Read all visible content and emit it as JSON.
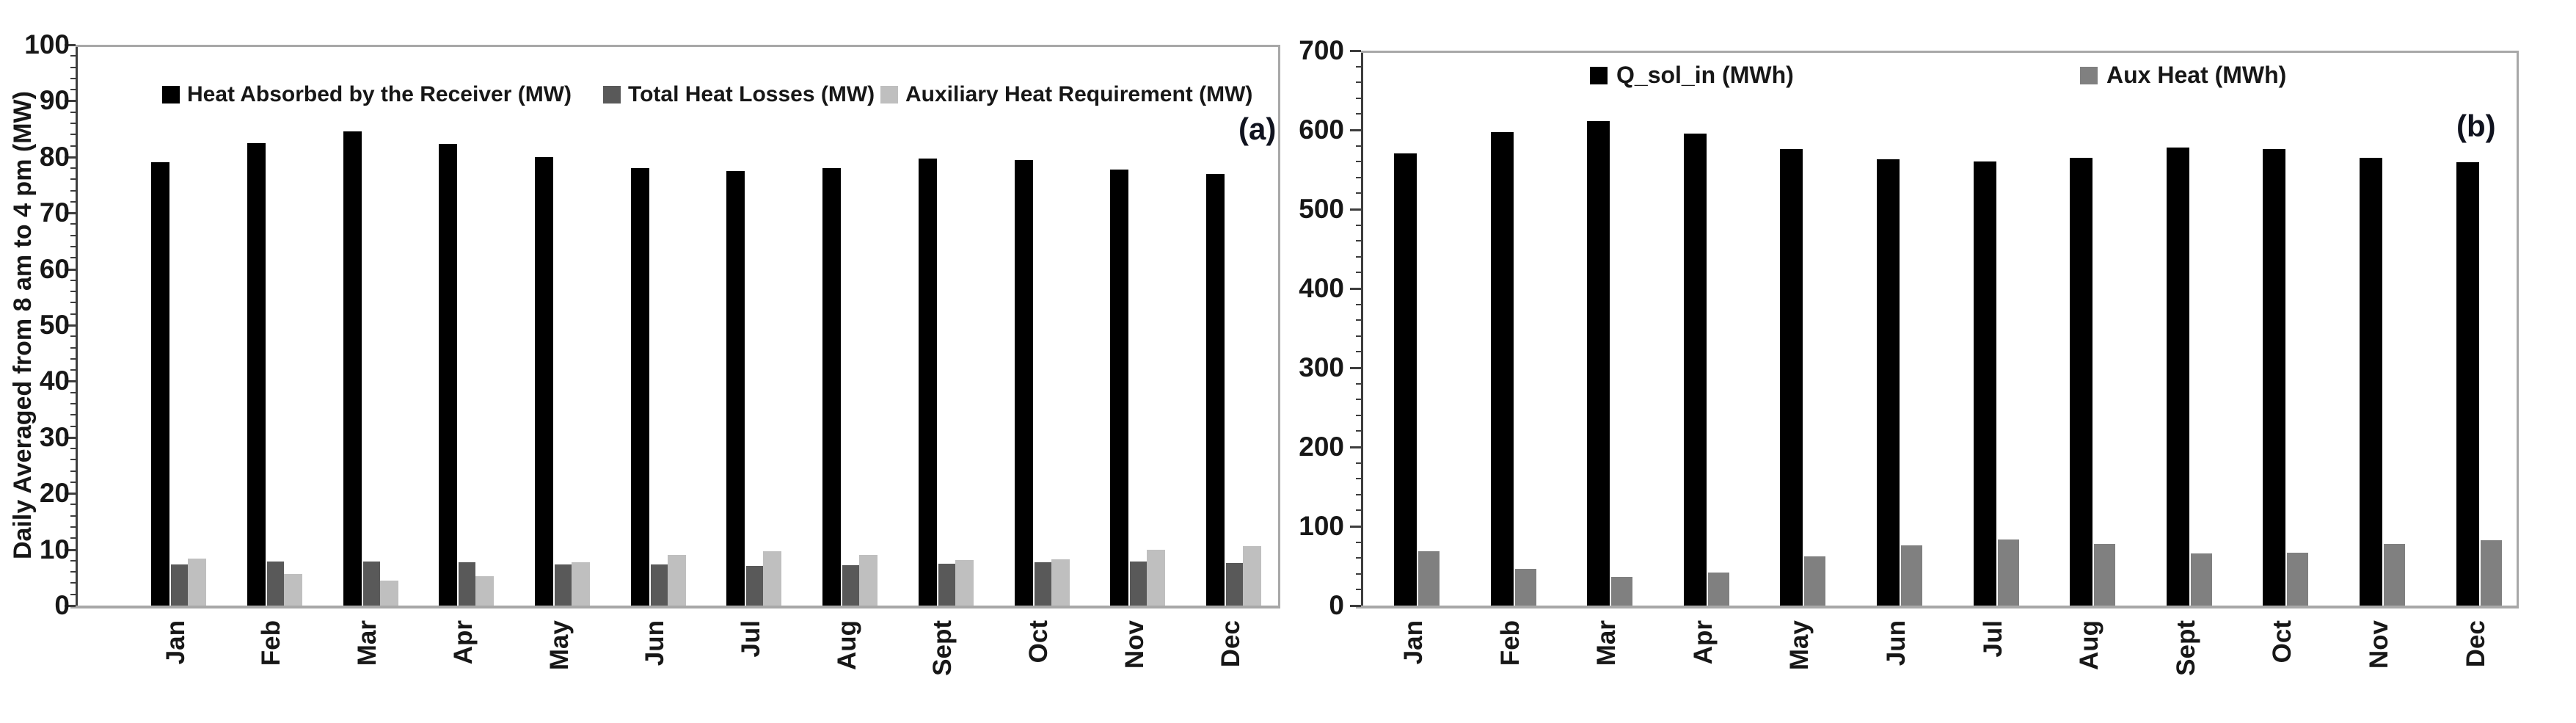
{
  "figure": {
    "background": "#ffffff",
    "axis_line_color": "#a8a8a8",
    "spine_color": "#3d3d3d",
    "text_color": "#171717"
  },
  "chart_data": [
    {
      "type": "bar",
      "panel_label": "(a)",
      "title": "",
      "xlabel": "",
      "ylabel": "Daily Averaged from 8 am to 4 pm (MW)",
      "ylim": [
        0,
        100
      ],
      "ytick_step": 10,
      "minor_tick_step": 2,
      "yticks": [
        "0",
        "10",
        "20",
        "30",
        "40",
        "50",
        "60",
        "70",
        "80",
        "90",
        "100"
      ],
      "grid": "off",
      "legend_position": "top-inside",
      "categories": [
        "Jan",
        "Feb",
        "Mar",
        "Apr",
        "May",
        "Jun",
        "Jul",
        "Aug",
        "Sept",
        "Oct",
        "Nov",
        "Dec"
      ],
      "series": [
        {
          "name": "Heat Absorbed by the Receiver (MW)",
          "color": "#000000",
          "values": [
            79,
            82.5,
            84.5,
            82.3,
            80,
            78,
            77.5,
            78,
            79.7,
            79.4,
            77.7,
            77
          ]
        },
        {
          "name": "Total Heat Losses (MW)",
          "color": "#595959",
          "values": [
            7.4,
            7.8,
            7.9,
            7.7,
            7.4,
            7.4,
            7.1,
            7.2,
            7.5,
            7.7,
            7.8,
            7.6
          ]
        },
        {
          "name": "Auxiliary Heat Requirement (MW)",
          "color": "#bfbfbf",
          "values": [
            8.4,
            5.6,
            4.4,
            5.3,
            7.7,
            9.1,
            9.7,
            9.1,
            8.1,
            8.3,
            10.0,
            10.6
          ]
        }
      ]
    },
    {
      "type": "bar",
      "panel_label": "(b)",
      "title": "",
      "xlabel": "",
      "ylabel": "",
      "ylim": [
        0,
        700
      ],
      "ytick_step": 100,
      "minor_tick_step": 20,
      "yticks": [
        "0",
        "100",
        "200",
        "300",
        "400",
        "500",
        "600",
        "700"
      ],
      "grid": "off",
      "legend_position": "top-inside",
      "categories": [
        "Jan",
        "Feb",
        "Mar",
        "Apr",
        "May",
        "Jun",
        "Jul",
        "Aug",
        "Sept",
        "Oct",
        "Nov",
        "Dec"
      ],
      "series": [
        {
          "name": "Q_sol_in (MWh)",
          "color": "#000000",
          "values": [
            570,
            597,
            611,
            595,
            576,
            563,
            560,
            565,
            578,
            576,
            565,
            559
          ]
        },
        {
          "name": "Aux Heat (MWh)",
          "color": "#808080",
          "values": [
            69,
            46,
            36,
            42,
            62,
            76,
            83,
            78,
            66,
            67,
            78,
            82
          ]
        }
      ]
    }
  ]
}
